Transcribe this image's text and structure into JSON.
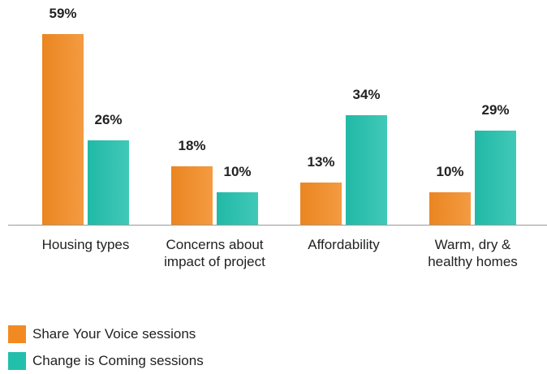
{
  "chart_data": {
    "type": "bar",
    "categories": [
      "Housing types",
      "Concerns about impact of project",
      "Affordability",
      "Warm, dry & healthy homes"
    ],
    "series": [
      {
        "name": "Share Your Voice sessions",
        "color": "#f28a22",
        "values": [
          59,
          18,
          13,
          10
        ],
        "value_labels": [
          "59%",
          "18%",
          "13%",
          "10%"
        ]
      },
      {
        "name": "Change is Coming sessions",
        "color": "#22bfac",
        "values": [
          26,
          10,
          34,
          29
        ],
        "value_labels": [
          "26%",
          "10%",
          "34%",
          "29%"
        ]
      }
    ]
  }
}
